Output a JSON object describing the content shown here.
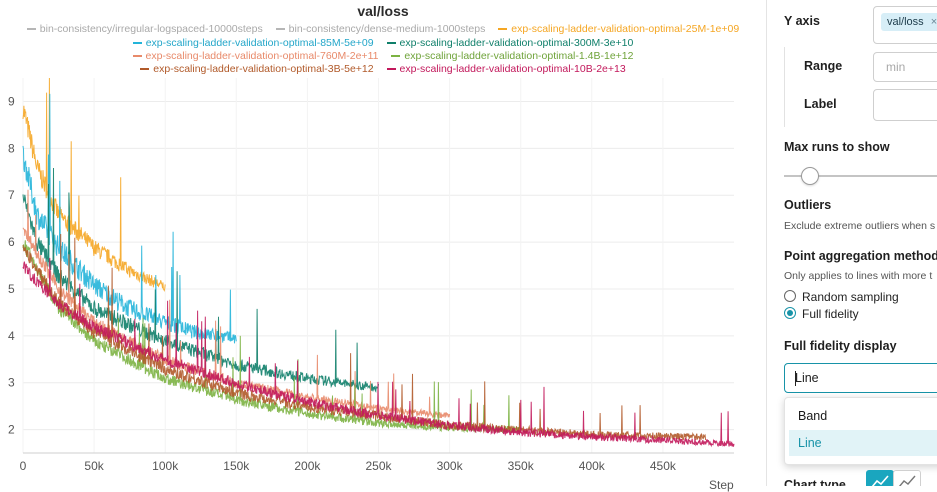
{
  "chart_title": "val/loss",
  "legend": [
    {
      "name": "bin-consistency/irregular-logspaced-10000steps",
      "color": "#b6b6b6"
    },
    {
      "name": "bin-consistency/dense-medium-1000steps",
      "color": "#b6b6b6"
    },
    {
      "name": "exp-scaling-ladder-validation-optimal-25M-1e+09",
      "color": "#f5a623"
    },
    {
      "name": "exp-scaling-ladder-validation-optimal-85M-5e+09",
      "color": "#23b4d9"
    },
    {
      "name": "exp-scaling-ladder-validation-optimal-300M-3e+10",
      "color": "#0f7f6a"
    },
    {
      "name": "exp-scaling-ladder-validation-optimal-760M-2e+11",
      "color": "#e88a6a"
    },
    {
      "name": "exp-scaling-ladder-validation-optimal-1.4B-1e+12",
      "color": "#7cb342"
    },
    {
      "name": "exp-scaling-ladder-validation-optimal-3B-5e+12",
      "color": "#b15a2a"
    },
    {
      "name": "exp-scaling-ladder-validation-optimal-10B-2e+13",
      "color": "#c2185b"
    }
  ],
  "x_axis_label": "Step",
  "chart_data": {
    "type": "line",
    "title": "val/loss",
    "xlabel": "Step",
    "ylabel": "",
    "xlim": [
      0,
      500000
    ],
    "ylim": [
      1.5,
      9.5
    ],
    "x_ticks": [
      0,
      50000,
      100000,
      150000,
      200000,
      250000,
      300000,
      350000,
      400000,
      450000
    ],
    "x_tick_labels": [
      "0",
      "50k",
      "100k",
      "150k",
      "200k",
      "250k",
      "300k",
      "350k",
      "400k",
      "450k"
    ],
    "y_ticks": [
      2,
      3,
      4,
      5,
      6,
      7,
      8,
      9
    ],
    "grid": true,
    "legend_position": "top",
    "series": [
      {
        "name": "exp-scaling-ladder-validation-optimal-25M-1e+09",
        "color": "#f5a623",
        "x": [
          0,
          10000,
          25000,
          50000,
          75000,
          100000
        ],
        "y": [
          8.9,
          7.6,
          6.6,
          5.9,
          5.4,
          5.05
        ],
        "noise": 0.5
      },
      {
        "name": "exp-scaling-ladder-validation-optimal-85M-5e+09",
        "color": "#23b4d9",
        "x": [
          0,
          10000,
          25000,
          50000,
          75000,
          100000,
          120000,
          150000
        ],
        "y": [
          7.9,
          6.6,
          5.9,
          5.1,
          4.6,
          4.3,
          4.1,
          3.95
        ],
        "noise": 0.55
      },
      {
        "name": "exp-scaling-ladder-validation-optimal-300M-3e+10",
        "color": "#0f7f6a",
        "x": [
          0,
          10000,
          25000,
          50000,
          100000,
          150000,
          200000,
          250000
        ],
        "y": [
          7.0,
          6.0,
          5.3,
          4.6,
          3.9,
          3.4,
          3.1,
          2.9
        ],
        "noise": 0.4
      },
      {
        "name": "exp-scaling-ladder-validation-optimal-760M-2e+11",
        "color": "#e88a6a",
        "x": [
          0,
          25000,
          50000,
          100000,
          150000,
          200000,
          250000,
          300000
        ],
        "y": [
          6.3,
          5.0,
          4.3,
          3.5,
          3.0,
          2.7,
          2.45,
          2.3
        ],
        "noise": 0.3
      },
      {
        "name": "exp-scaling-ladder-validation-optimal-1.4B-1e+12",
        "color": "#7cb342",
        "x": [
          0,
          25000,
          50000,
          100000,
          150000,
          200000,
          250000,
          300000,
          350000
        ],
        "y": [
          6.0,
          4.6,
          3.9,
          3.1,
          2.65,
          2.35,
          2.15,
          2.05,
          2.0
        ],
        "noise": 0.3
      },
      {
        "name": "exp-scaling-ladder-validation-optimal-3B-5e+12",
        "color": "#b15a2a",
        "x": [
          0,
          25000,
          50000,
          100000,
          150000,
          200000,
          300000,
          400000,
          480000
        ],
        "y": [
          5.9,
          4.7,
          4.1,
          3.3,
          2.8,
          2.5,
          2.1,
          1.9,
          1.85
        ],
        "noise": 0.3
      },
      {
        "name": "exp-scaling-ladder-validation-optimal-10B-2e+13",
        "color": "#c2185b",
        "x": [
          0,
          25000,
          50000,
          100000,
          150000,
          200000,
          250000,
          300000,
          350000,
          400000,
          450000,
          500000
        ],
        "y": [
          5.5,
          4.7,
          4.2,
          3.5,
          3.0,
          2.6,
          2.3,
          2.1,
          1.95,
          1.85,
          1.78,
          1.7
        ],
        "noise": 0.28
      }
    ]
  },
  "settings": {
    "y_axis_label": "Y axis",
    "y_axis_tag": "val/loss",
    "y_axis_tag_close": "×",
    "range_label": "Range",
    "range_placeholder": "min",
    "label_label": "Label",
    "max_runs_label": "Max runs to show",
    "outliers_label": "Outliers",
    "outliers_desc": "Exclude extreme outliers when s",
    "point_agg_label": "Point aggregation method",
    "point_agg_desc": "Only applies to lines with more t",
    "random_sampling": "Random sampling",
    "full_fidelity": "Full fidelity",
    "ff_display_label": "Full fidelity display",
    "ff_display_value": "Line",
    "options": [
      "Band",
      "Line"
    ],
    "chart_type_label": "Chart type"
  },
  "colors": {
    "accent": "#1793a8",
    "selected_bg": "#e1f3f7",
    "tag_bg": "#d7eef7"
  }
}
